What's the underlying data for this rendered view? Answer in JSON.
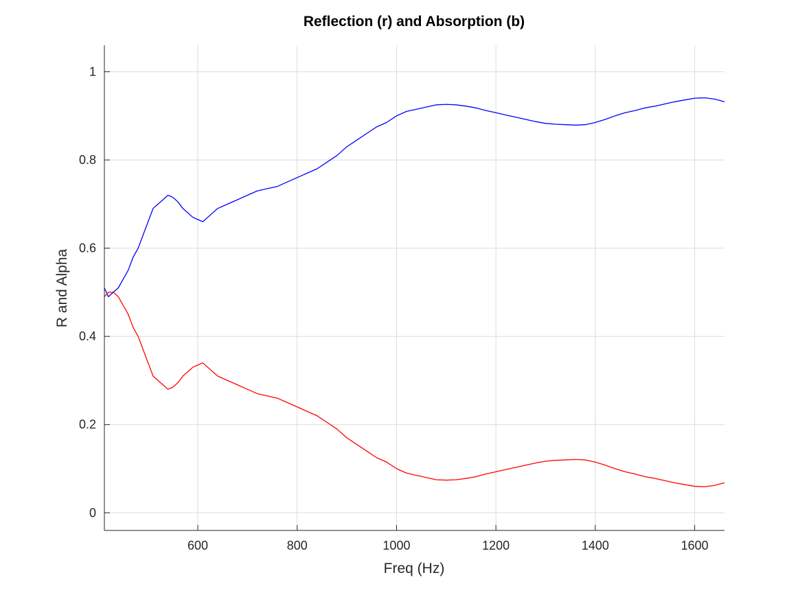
{
  "chart_data": {
    "type": "line",
    "title": "Reflection (r) and Absorption (b)",
    "xlabel": "Freq (Hz)",
    "ylabel": "R and Alpha",
    "xlim": [
      412,
      1660
    ],
    "ylim": [
      -0.04,
      1.06
    ],
    "xticks": [
      600,
      800,
      1000,
      1200,
      1400,
      1600
    ],
    "yticks": [
      0,
      0.2,
      0.4,
      0.6,
      0.8,
      1
    ],
    "ytick_labels": [
      "0",
      "0.2",
      "0.4",
      "0.6",
      "0.8",
      "1"
    ],
    "grid": true,
    "legend": "none",
    "series": [
      {
        "color": "#0000ff",
        "x": [
          412,
          420,
          430,
          440,
          450,
          460,
          470,
          480,
          490,
          500,
          510,
          520,
          530,
          540,
          550,
          560,
          570,
          580,
          590,
          600,
          610,
          620,
          630,
          640,
          660,
          680,
          700,
          720,
          740,
          760,
          780,
          800,
          820,
          840,
          860,
          880,
          900,
          920,
          940,
          960,
          980,
          1000,
          1020,
          1040,
          1060,
          1080,
          1100,
          1120,
          1140,
          1160,
          1180,
          1200,
          1220,
          1240,
          1260,
          1280,
          1300,
          1320,
          1340,
          1360,
          1380,
          1400,
          1420,
          1440,
          1460,
          1480,
          1500,
          1520,
          1540,
          1560,
          1580,
          1600,
          1620,
          1640,
          1660
        ],
        "y": [
          0.51,
          0.49,
          0.5,
          0.51,
          0.53,
          0.55,
          0.58,
          0.6,
          0.63,
          0.66,
          0.69,
          0.7,
          0.71,
          0.72,
          0.715,
          0.705,
          0.69,
          0.68,
          0.67,
          0.665,
          0.66,
          0.67,
          0.68,
          0.69,
          0.7,
          0.71,
          0.72,
          0.73,
          0.735,
          0.74,
          0.75,
          0.76,
          0.77,
          0.78,
          0.795,
          0.81,
          0.83,
          0.845,
          0.86,
          0.875,
          0.885,
          0.9,
          0.91,
          0.915,
          0.92,
          0.925,
          0.926,
          0.925,
          0.922,
          0.918,
          0.912,
          0.907,
          0.902,
          0.897,
          0.892,
          0.887,
          0.883,
          0.881,
          0.88,
          0.879,
          0.88,
          0.885,
          0.892,
          0.9,
          0.907,
          0.912,
          0.918,
          0.922,
          0.927,
          0.932,
          0.936,
          0.94,
          0.941,
          0.938,
          0.932
        ]
      },
      {
        "color": "#ff0000",
        "x": [
          412,
          420,
          430,
          440,
          450,
          460,
          470,
          480,
          490,
          500,
          510,
          520,
          530,
          540,
          550,
          560,
          570,
          580,
          590,
          600,
          610,
          620,
          630,
          640,
          660,
          680,
          700,
          720,
          740,
          760,
          780,
          800,
          820,
          840,
          860,
          880,
          900,
          920,
          940,
          960,
          980,
          1000,
          1020,
          1040,
          1060,
          1080,
          1100,
          1120,
          1140,
          1160,
          1180,
          1200,
          1220,
          1240,
          1260,
          1280,
          1300,
          1320,
          1340,
          1360,
          1380,
          1400,
          1420,
          1440,
          1460,
          1480,
          1500,
          1520,
          1540,
          1560,
          1580,
          1600,
          1620,
          1640,
          1660
        ],
        "y": [
          0.49,
          0.5,
          0.5,
          0.49,
          0.47,
          0.45,
          0.42,
          0.4,
          0.37,
          0.34,
          0.31,
          0.3,
          0.29,
          0.28,
          0.285,
          0.295,
          0.31,
          0.32,
          0.33,
          0.335,
          0.34,
          0.33,
          0.32,
          0.31,
          0.3,
          0.29,
          0.28,
          0.27,
          0.265,
          0.26,
          0.25,
          0.24,
          0.23,
          0.22,
          0.205,
          0.19,
          0.17,
          0.155,
          0.14,
          0.125,
          0.115,
          0.1,
          0.09,
          0.085,
          0.08,
          0.075,
          0.074,
          0.075,
          0.078,
          0.082,
          0.088,
          0.093,
          0.098,
          0.103,
          0.108,
          0.113,
          0.117,
          0.119,
          0.12,
          0.121,
          0.12,
          0.115,
          0.108,
          0.1,
          0.093,
          0.088,
          0.082,
          0.078,
          0.073,
          0.068,
          0.064,
          0.06,
          0.059,
          0.062,
          0.068
        ]
      }
    ]
  }
}
